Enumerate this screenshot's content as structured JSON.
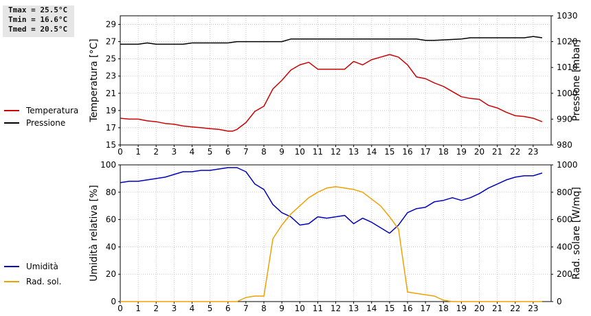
{
  "stats": {
    "tmax": "Tmax = 25.5°C",
    "tmin": "Tmin = 16.6°C",
    "tmed": "Tmed = 20.5°C"
  },
  "colors": {
    "temperature": "#cc0000",
    "pressure": "#000000",
    "humidity": "#0000bb",
    "solar": "#f0a000"
  },
  "chart_data": [
    {
      "type": "line",
      "ylabel": "Temperatura [°C]",
      "y2label": "Pressione [mbar]",
      "ylim": [
        15,
        30
      ],
      "yticks": [
        15,
        17,
        19,
        21,
        23,
        25,
        27,
        29
      ],
      "y2lim": [
        980,
        1030
      ],
      "y2ticks": [
        980,
        990,
        1000,
        1010,
        1020,
        1030
      ],
      "xlim": [
        0,
        24
      ],
      "xticks": [
        0,
        1,
        2,
        3,
        4,
        5,
        6,
        7,
        8,
        9,
        10,
        11,
        12,
        13,
        14,
        15,
        16,
        17,
        18,
        19,
        20,
        21,
        22,
        23
      ],
      "grid": true,
      "series": [
        {
          "name": "Temperatura",
          "axis": "left",
          "x": [
            0,
            0.5,
            1,
            1.5,
            2,
            2.5,
            3,
            3.5,
            4,
            4.5,
            5,
            5.5,
            6,
            6.25,
            6.5,
            7,
            7.5,
            8,
            8.5,
            9,
            9.5,
            10,
            10.5,
            11,
            11.5,
            12,
            12.5,
            13,
            13.5,
            14,
            14.5,
            15,
            15.5,
            16,
            16.5,
            17,
            17.5,
            18,
            18.5,
            19,
            19.5,
            20,
            20.5,
            21,
            21.5,
            22,
            22.5,
            23,
            23.5
          ],
          "y": [
            18.1,
            18.0,
            18.0,
            17.8,
            17.7,
            17.5,
            17.4,
            17.2,
            17.1,
            17.0,
            16.9,
            16.8,
            16.6,
            16.6,
            16.8,
            17.6,
            18.9,
            19.5,
            21.5,
            22.5,
            23.7,
            24.3,
            24.6,
            23.8,
            23.8,
            23.8,
            23.8,
            24.7,
            24.3,
            24.9,
            25.2,
            25.5,
            25.2,
            24.3,
            22.9,
            22.7,
            22.2,
            21.8,
            21.2,
            20.6,
            20.4,
            20.3,
            19.6,
            19.3,
            18.8,
            18.4,
            18.3,
            18.1,
            17.7
          ]
        },
        {
          "name": "Pressione",
          "axis": "right",
          "x": [
            0,
            1,
            1.5,
            2,
            3.5,
            4,
            6,
            6.5,
            8.5,
            9,
            9.5,
            16.5,
            17,
            17.5,
            19,
            19.5,
            22.5,
            23,
            23.5
          ],
          "y": [
            1019,
            1019,
            1019.5,
            1019,
            1019,
            1019.5,
            1019.5,
            1020,
            1020,
            1020,
            1021,
            1021,
            1020.5,
            1020.5,
            1021,
            1021.5,
            1021.5,
            1022,
            1021.5
          ]
        }
      ]
    },
    {
      "type": "line",
      "ylabel": "Umidità relativa [%]",
      "y2label": "Rad. solare [W/mq]",
      "ylim": [
        0,
        100
      ],
      "yticks": [
        0,
        20,
        40,
        60,
        80,
        100
      ],
      "y2lim": [
        0,
        1000
      ],
      "y2ticks": [
        0,
        200,
        400,
        600,
        800,
        1000
      ],
      "xlim": [
        0,
        24
      ],
      "xticks": [
        0,
        1,
        2,
        3,
        4,
        5,
        6,
        7,
        8,
        9,
        10,
        11,
        12,
        13,
        14,
        15,
        16,
        17,
        18,
        19,
        20,
        21,
        22,
        23
      ],
      "grid": true,
      "series": [
        {
          "name": "Umidità",
          "axis": "left",
          "x": [
            0,
            0.5,
            1,
            1.5,
            2,
            2.5,
            3,
            3.5,
            4,
            4.5,
            5,
            5.5,
            6,
            6.5,
            7,
            7.5,
            8,
            8.5,
            9,
            9.5,
            10,
            10.5,
            11,
            11.5,
            12,
            12.5,
            13,
            13.5,
            14,
            14.5,
            15,
            15.5,
            16,
            16.5,
            17,
            17.5,
            18,
            18.5,
            19,
            19.5,
            20,
            20.5,
            21,
            21.5,
            22,
            22.5,
            23,
            23.5
          ],
          "y": [
            87,
            88,
            88,
            89,
            90,
            91,
            93,
            95,
            95,
            96,
            96,
            97,
            98,
            98,
            95,
            86,
            82,
            71,
            65,
            62,
            56,
            57,
            62,
            61,
            62,
            63,
            57,
            61,
            58,
            54,
            50,
            56,
            65,
            68,
            69,
            73,
            74,
            76,
            74,
            76,
            79,
            83,
            86,
            89,
            91,
            92,
            92,
            94
          ]
        },
        {
          "name": "Rad. sol.",
          "axis": "right",
          "x": [
            0,
            0.5,
            1,
            1.5,
            2,
            2.5,
            3,
            3.5,
            4,
            4.5,
            5,
            5.5,
            6,
            6.5,
            7,
            7.5,
            8,
            8.5,
            9,
            9.5,
            10,
            10.5,
            11,
            11.5,
            12,
            12.5,
            13,
            13.5,
            14,
            14.5,
            15,
            15.5,
            16,
            16.5,
            17,
            17.5,
            18,
            18.5,
            19,
            19.5,
            20,
            20.5,
            21,
            21.5,
            22,
            22.5,
            23,
            23.5
          ],
          "y": [
            0,
            0,
            0,
            0,
            0,
            0,
            0,
            0,
            0,
            0,
            0,
            0,
            0,
            0,
            30,
            40,
            40,
            460,
            560,
            640,
            700,
            760,
            800,
            830,
            840,
            830,
            820,
            800,
            750,
            700,
            620,
            530,
            70,
            60,
            50,
            40,
            10,
            0,
            0,
            0,
            0,
            0,
            0,
            0,
            0,
            0,
            0,
            0
          ]
        }
      ]
    }
  ]
}
